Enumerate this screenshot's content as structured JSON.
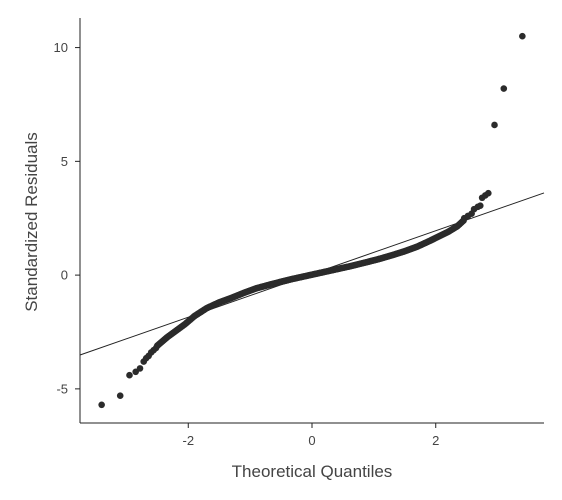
{
  "chart_data": {
    "type": "scatter",
    "title": "",
    "xlabel": "Theoretical Quantiles",
    "ylabel": "Standardized Residuals",
    "xlim": [
      -3.75,
      3.75
    ],
    "ylim": [
      -6.5,
      11.3
    ],
    "x_ticks": [
      {
        "value": -2,
        "label": "-2"
      },
      {
        "value": 0,
        "label": "0"
      },
      {
        "value": 2,
        "label": "2"
      }
    ],
    "y_ticks": [
      {
        "value": -5,
        "label": "-5"
      },
      {
        "value": 0,
        "label": "0"
      },
      {
        "value": 5,
        "label": "5"
      },
      {
        "value": 10,
        "label": "10"
      }
    ],
    "grid": false,
    "legend": "none",
    "point_color": "#2b2b2b",
    "reference_line": {
      "slope": 0.95,
      "intercept": 0.05
    },
    "tail_points": {
      "x": [
        -3.4,
        -3.1,
        -2.95,
        -2.85,
        -2.78,
        -2.72,
        -2.68,
        -2.64,
        -2.6,
        -2.56,
        -2.52,
        2.46,
        2.52,
        2.58,
        2.62,
        2.68,
        2.72,
        2.75,
        2.8,
        2.85,
        2.95,
        3.1,
        3.4
      ],
      "y": [
        -5.7,
        -5.3,
        -4.4,
        -4.25,
        -4.1,
        -3.8,
        -3.65,
        -3.55,
        -3.4,
        -3.3,
        -3.2,
        2.5,
        2.6,
        2.7,
        2.9,
        3.0,
        3.05,
        3.4,
        3.5,
        3.6,
        6.6,
        8.2,
        10.5
      ]
    },
    "body_curve": {
      "x": [
        -2.5,
        -2.35,
        -2.2,
        -2.05,
        -1.9,
        -1.7,
        -1.5,
        -1.3,
        -1.1,
        -0.9,
        -0.6,
        -0.3,
        0.0,
        0.3,
        0.6,
        0.9,
        1.1,
        1.3,
        1.5,
        1.7,
        1.9,
        2.05,
        2.2,
        2.35,
        2.45
      ],
      "y": [
        -3.1,
        -2.75,
        -2.45,
        -2.15,
        -1.8,
        -1.45,
        -1.2,
        -1.0,
        -0.78,
        -0.58,
        -0.36,
        -0.16,
        0.02,
        0.2,
        0.38,
        0.58,
        0.72,
        0.88,
        1.05,
        1.25,
        1.5,
        1.7,
        1.9,
        2.15,
        2.4
      ]
    },
    "body_point_count": 300
  }
}
